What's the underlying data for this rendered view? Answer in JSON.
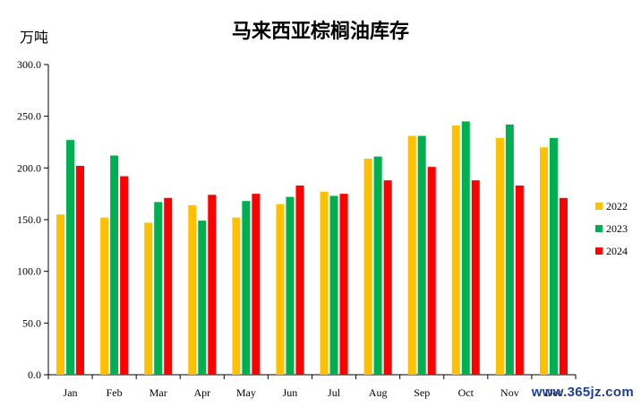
{
  "chart_data": {
    "type": "bar",
    "title": "马来西亚棕榈油库存",
    "ylabel": "万吨",
    "xlabel": "",
    "ylim": [
      0,
      300
    ],
    "yticks": [
      "0.0",
      "50.0",
      "100.0",
      "150.0",
      "200.0",
      "250.0",
      "300.0"
    ],
    "categories": [
      "Jan",
      "Feb",
      "Mar",
      "Apr",
      "May",
      "Jun",
      "Jul",
      "Aug",
      "Sep",
      "Oct",
      "Nov",
      "Dec"
    ],
    "legend_position": "right",
    "grid": false,
    "series": [
      {
        "name": "2022",
        "color": "#ffc000",
        "values": [
          155,
          152,
          147,
          164,
          152,
          165,
          177,
          209,
          231,
          241,
          229,
          220
        ]
      },
      {
        "name": "2023",
        "color": "#00b050",
        "values": [
          227,
          212,
          167,
          149,
          168,
          172,
          173,
          211,
          231,
          245,
          242,
          229
        ]
      },
      {
        "name": "2024",
        "color": "#ff0000",
        "values": [
          202,
          192,
          171,
          174,
          175,
          183,
          175,
          188,
          201,
          188,
          183,
          171
        ]
      }
    ]
  },
  "watermark": "www.365jz.com"
}
